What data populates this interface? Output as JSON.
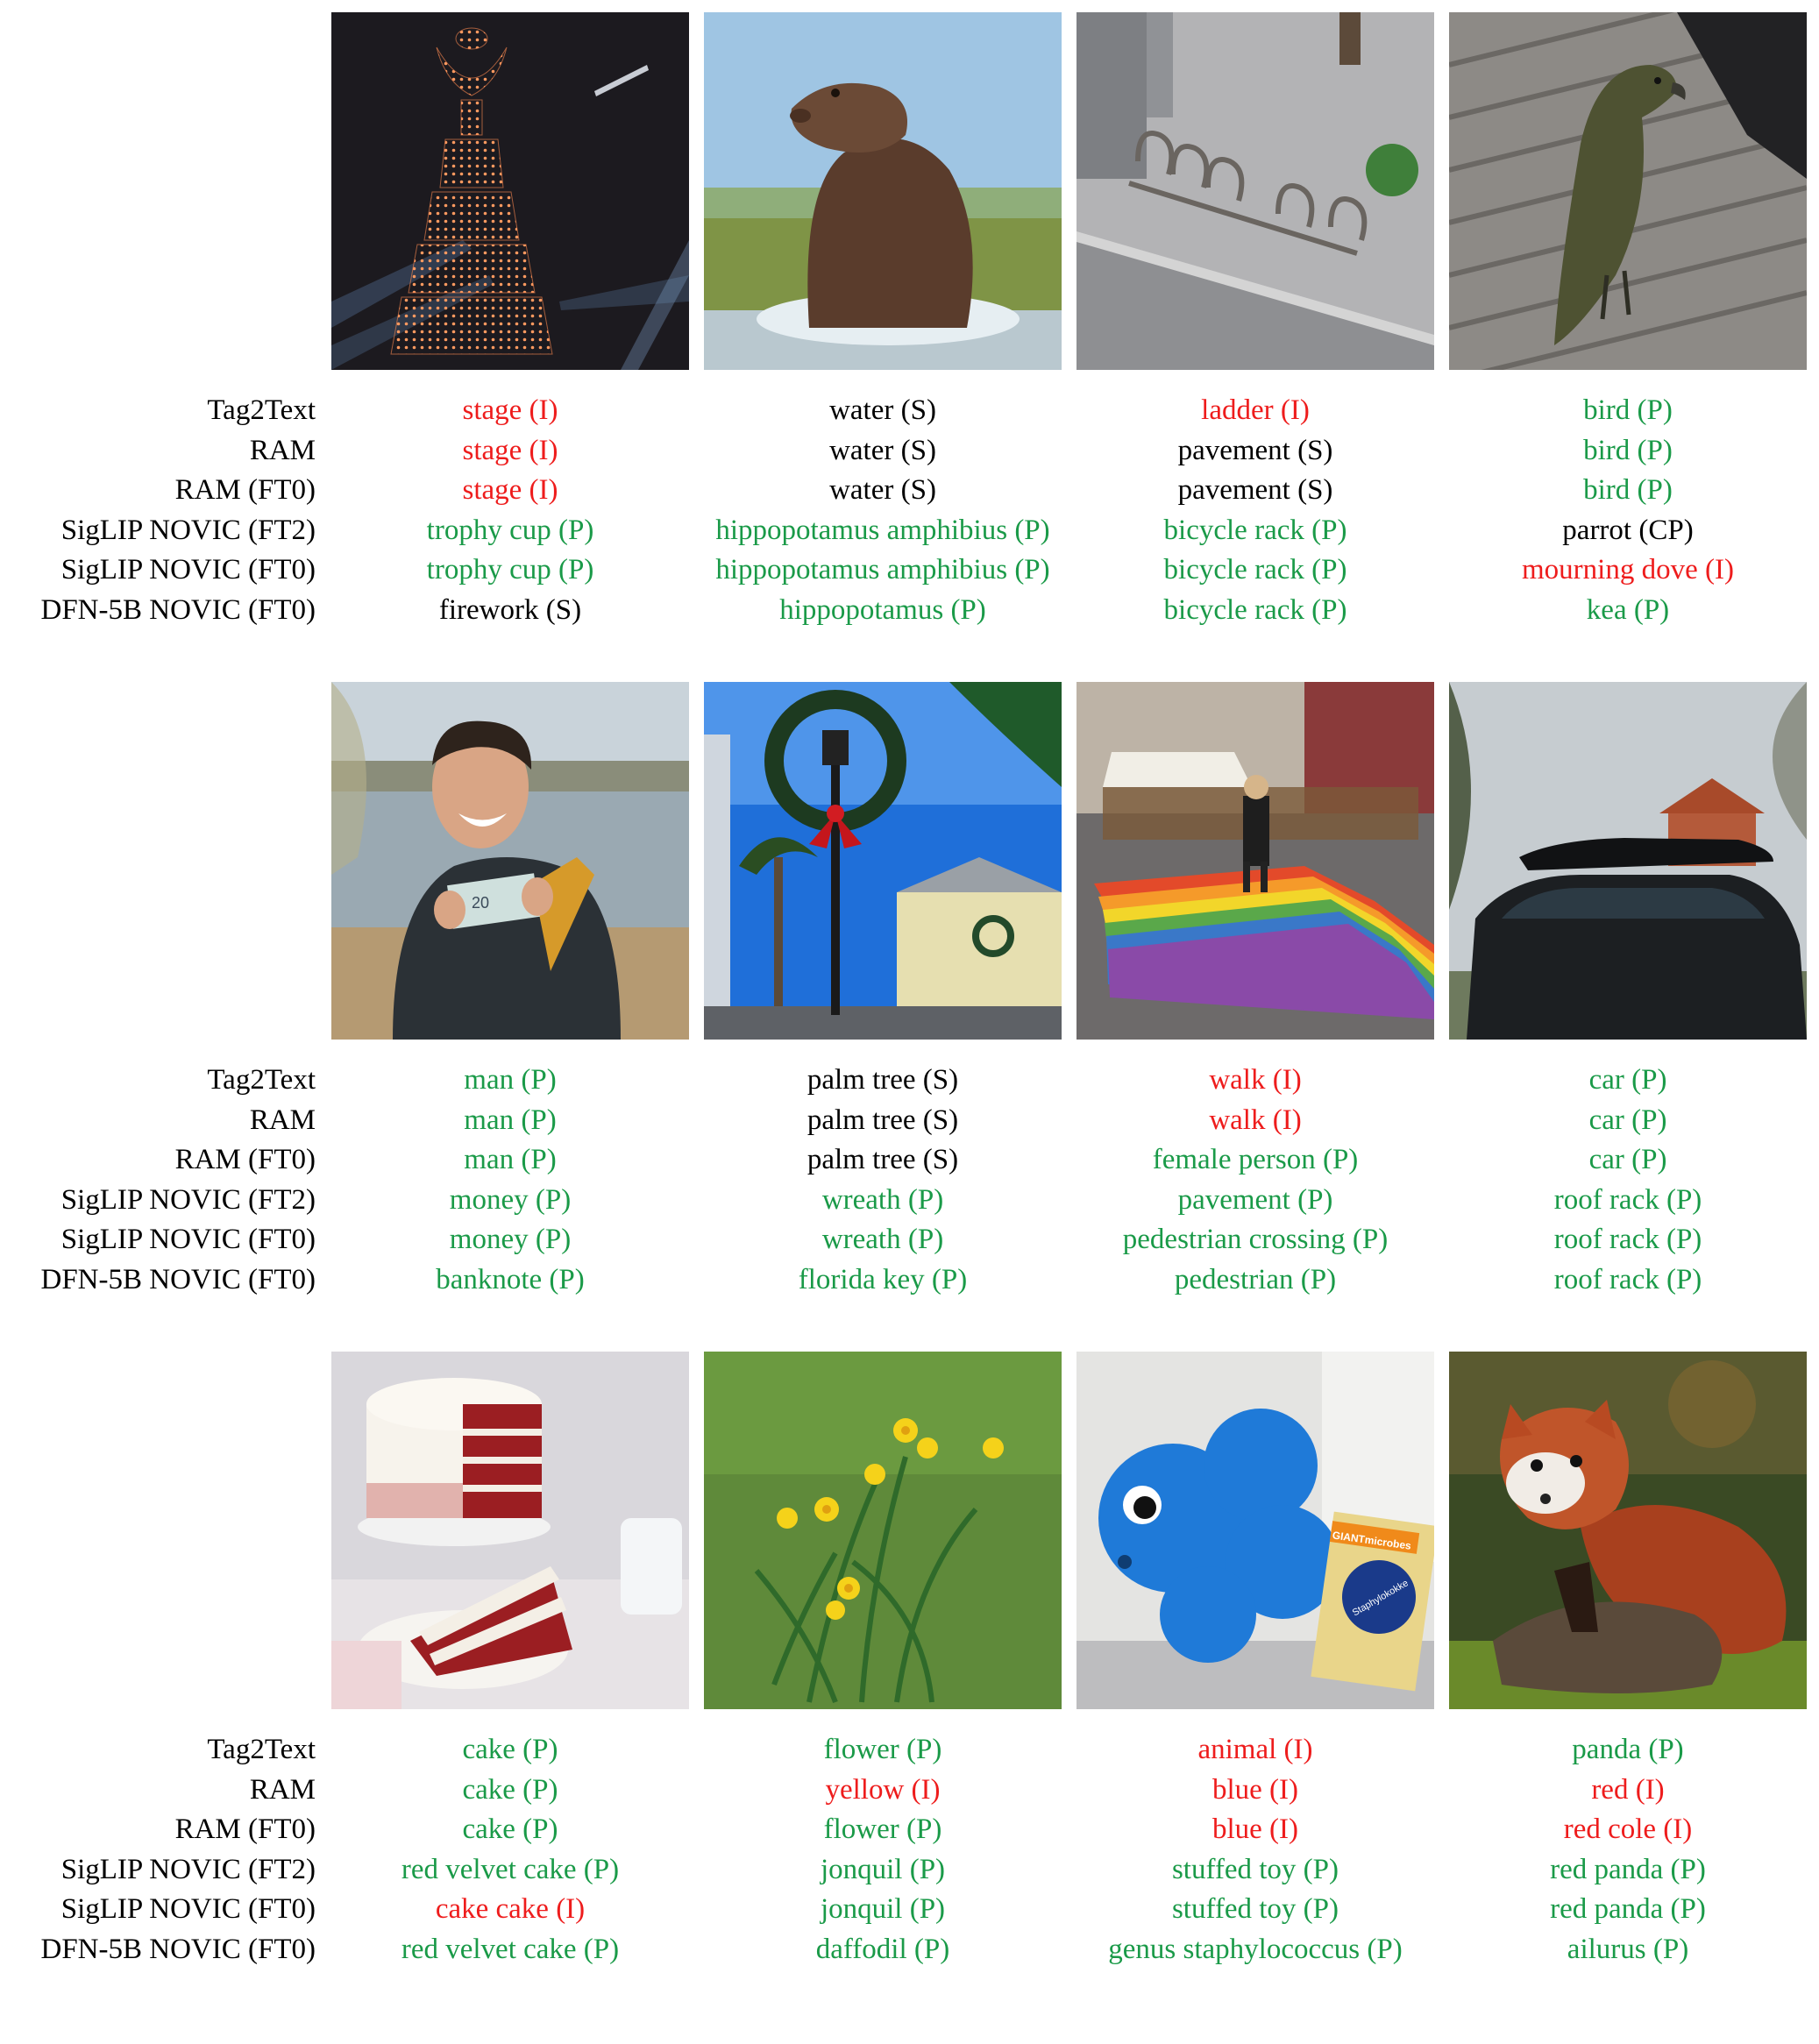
{
  "colors": {
    "P": "#1a9a48",
    "I": "#ee1c1c",
    "S": "#000000",
    "CP": "#000000"
  },
  "models": [
    "Tag2Text",
    "RAM",
    "RAM (FT0)",
    "SigLIP NOVIC (FT2)",
    "SigLIP NOVIC (FT0)",
    "DFN-5B NOVIC (FT0)"
  ],
  "groups": [
    {
      "images": [
        {
          "name": "drone-trophy-cake-photo",
          "predictions": [
            {
              "text": "stage (I)",
              "cls": "I"
            },
            {
              "text": "stage (I)",
              "cls": "I"
            },
            {
              "text": "stage (I)",
              "cls": "I"
            },
            {
              "text": "trophy cup (P)",
              "cls": "P"
            },
            {
              "text": "trophy cup (P)",
              "cls": "P"
            },
            {
              "text": "firework (S)",
              "cls": "S"
            }
          ]
        },
        {
          "name": "hippopotamus-photo",
          "predictions": [
            {
              "text": "water (S)",
              "cls": "S"
            },
            {
              "text": "water (S)",
              "cls": "S"
            },
            {
              "text": "water (S)",
              "cls": "S"
            },
            {
              "text": "hippopotamus amphibius (P)",
              "cls": "P"
            },
            {
              "text": "hippopotamus amphibius (P)",
              "cls": "P"
            },
            {
              "text": "hippopotamus (P)",
              "cls": "P"
            }
          ]
        },
        {
          "name": "bicycle-rack-photo",
          "predictions": [
            {
              "text": "ladder (I)",
              "cls": "I"
            },
            {
              "text": "pavement (S)",
              "cls": "S"
            },
            {
              "text": "pavement (S)",
              "cls": "S"
            },
            {
              "text": "bicycle rack (P)",
              "cls": "P"
            },
            {
              "text": "bicycle rack (P)",
              "cls": "P"
            },
            {
              "text": "bicycle rack (P)",
              "cls": "P"
            }
          ]
        },
        {
          "name": "kea-bird-photo",
          "predictions": [
            {
              "text": "bird (P)",
              "cls": "P"
            },
            {
              "text": "bird (P)",
              "cls": "P"
            },
            {
              "text": "bird (P)",
              "cls": "P"
            },
            {
              "text": "parrot (CP)",
              "cls": "CP"
            },
            {
              "text": "mourning dove (I)",
              "cls": "I"
            },
            {
              "text": "kea (P)",
              "cls": "P"
            }
          ]
        }
      ]
    },
    {
      "images": [
        {
          "name": "man-with-banknote-photo",
          "predictions": [
            {
              "text": "man (P)",
              "cls": "P"
            },
            {
              "text": "man (P)",
              "cls": "P"
            },
            {
              "text": "man (P)",
              "cls": "P"
            },
            {
              "text": "money (P)",
              "cls": "P"
            },
            {
              "text": "money (P)",
              "cls": "P"
            },
            {
              "text": "banknote (P)",
              "cls": "P"
            }
          ]
        },
        {
          "name": "street-wreath-palm-photo",
          "predictions": [
            {
              "text": "palm tree (S)",
              "cls": "S"
            },
            {
              "text": "palm tree (S)",
              "cls": "S"
            },
            {
              "text": "palm tree (S)",
              "cls": "S"
            },
            {
              "text": "wreath (P)",
              "cls": "P"
            },
            {
              "text": "wreath (P)",
              "cls": "P"
            },
            {
              "text": "florida key (P)",
              "cls": "P"
            }
          ]
        },
        {
          "name": "rainbow-crossing-photo",
          "predictions": [
            {
              "text": "walk (I)",
              "cls": "I"
            },
            {
              "text": "walk (I)",
              "cls": "I"
            },
            {
              "text": "female person (P)",
              "cls": "P"
            },
            {
              "text": "pavement (P)",
              "cls": "P"
            },
            {
              "text": "pedestrian crossing (P)",
              "cls": "P"
            },
            {
              "text": "pedestrian (P)",
              "cls": "P"
            }
          ]
        },
        {
          "name": "car-roof-rack-photo",
          "predictions": [
            {
              "text": "car (P)",
              "cls": "P"
            },
            {
              "text": "car (P)",
              "cls": "P"
            },
            {
              "text": "car (P)",
              "cls": "P"
            },
            {
              "text": "roof rack (P)",
              "cls": "P"
            },
            {
              "text": "roof rack (P)",
              "cls": "P"
            },
            {
              "text": "roof rack (P)",
              "cls": "P"
            }
          ]
        }
      ]
    },
    {
      "images": [
        {
          "name": "red-velvet-cake-photo",
          "predictions": [
            {
              "text": "cake (P)",
              "cls": "P"
            },
            {
              "text": "cake (P)",
              "cls": "P"
            },
            {
              "text": "cake (P)",
              "cls": "P"
            },
            {
              "text": "red velvet cake (P)",
              "cls": "P"
            },
            {
              "text": "cake cake (I)",
              "cls": "I"
            },
            {
              "text": "red velvet cake (P)",
              "cls": "P"
            }
          ]
        },
        {
          "name": "daffodils-photo",
          "predictions": [
            {
              "text": "flower (P)",
              "cls": "P"
            },
            {
              "text": "yellow (I)",
              "cls": "I"
            },
            {
              "text": "flower (P)",
              "cls": "P"
            },
            {
              "text": "jonquil (P)",
              "cls": "P"
            },
            {
              "text": "jonquil (P)",
              "cls": "P"
            },
            {
              "text": "daffodil (P)",
              "cls": "P"
            }
          ]
        },
        {
          "name": "plush-microbe-photo",
          "predictions": [
            {
              "text": "animal (I)",
              "cls": "I"
            },
            {
              "text": "blue (I)",
              "cls": "I"
            },
            {
              "text": "blue (I)",
              "cls": "I"
            },
            {
              "text": "stuffed toy (P)",
              "cls": "P"
            },
            {
              "text": "stuffed toy (P)",
              "cls": "P"
            },
            {
              "text": "genus staphylococcus (P)",
              "cls": "P"
            }
          ],
          "box_text": [
            "GIANTmicrobes",
            "Staphylokokke"
          ]
        },
        {
          "name": "red-panda-photo",
          "predictions": [
            {
              "text": "panda (P)",
              "cls": "P"
            },
            {
              "text": "red (I)",
              "cls": "I"
            },
            {
              "text": "red cole (I)",
              "cls": "I"
            },
            {
              "text": "red panda (P)",
              "cls": "P"
            },
            {
              "text": "red panda (P)",
              "cls": "P"
            },
            {
              "text": "ailurus (P)",
              "cls": "P"
            }
          ]
        }
      ]
    }
  ]
}
